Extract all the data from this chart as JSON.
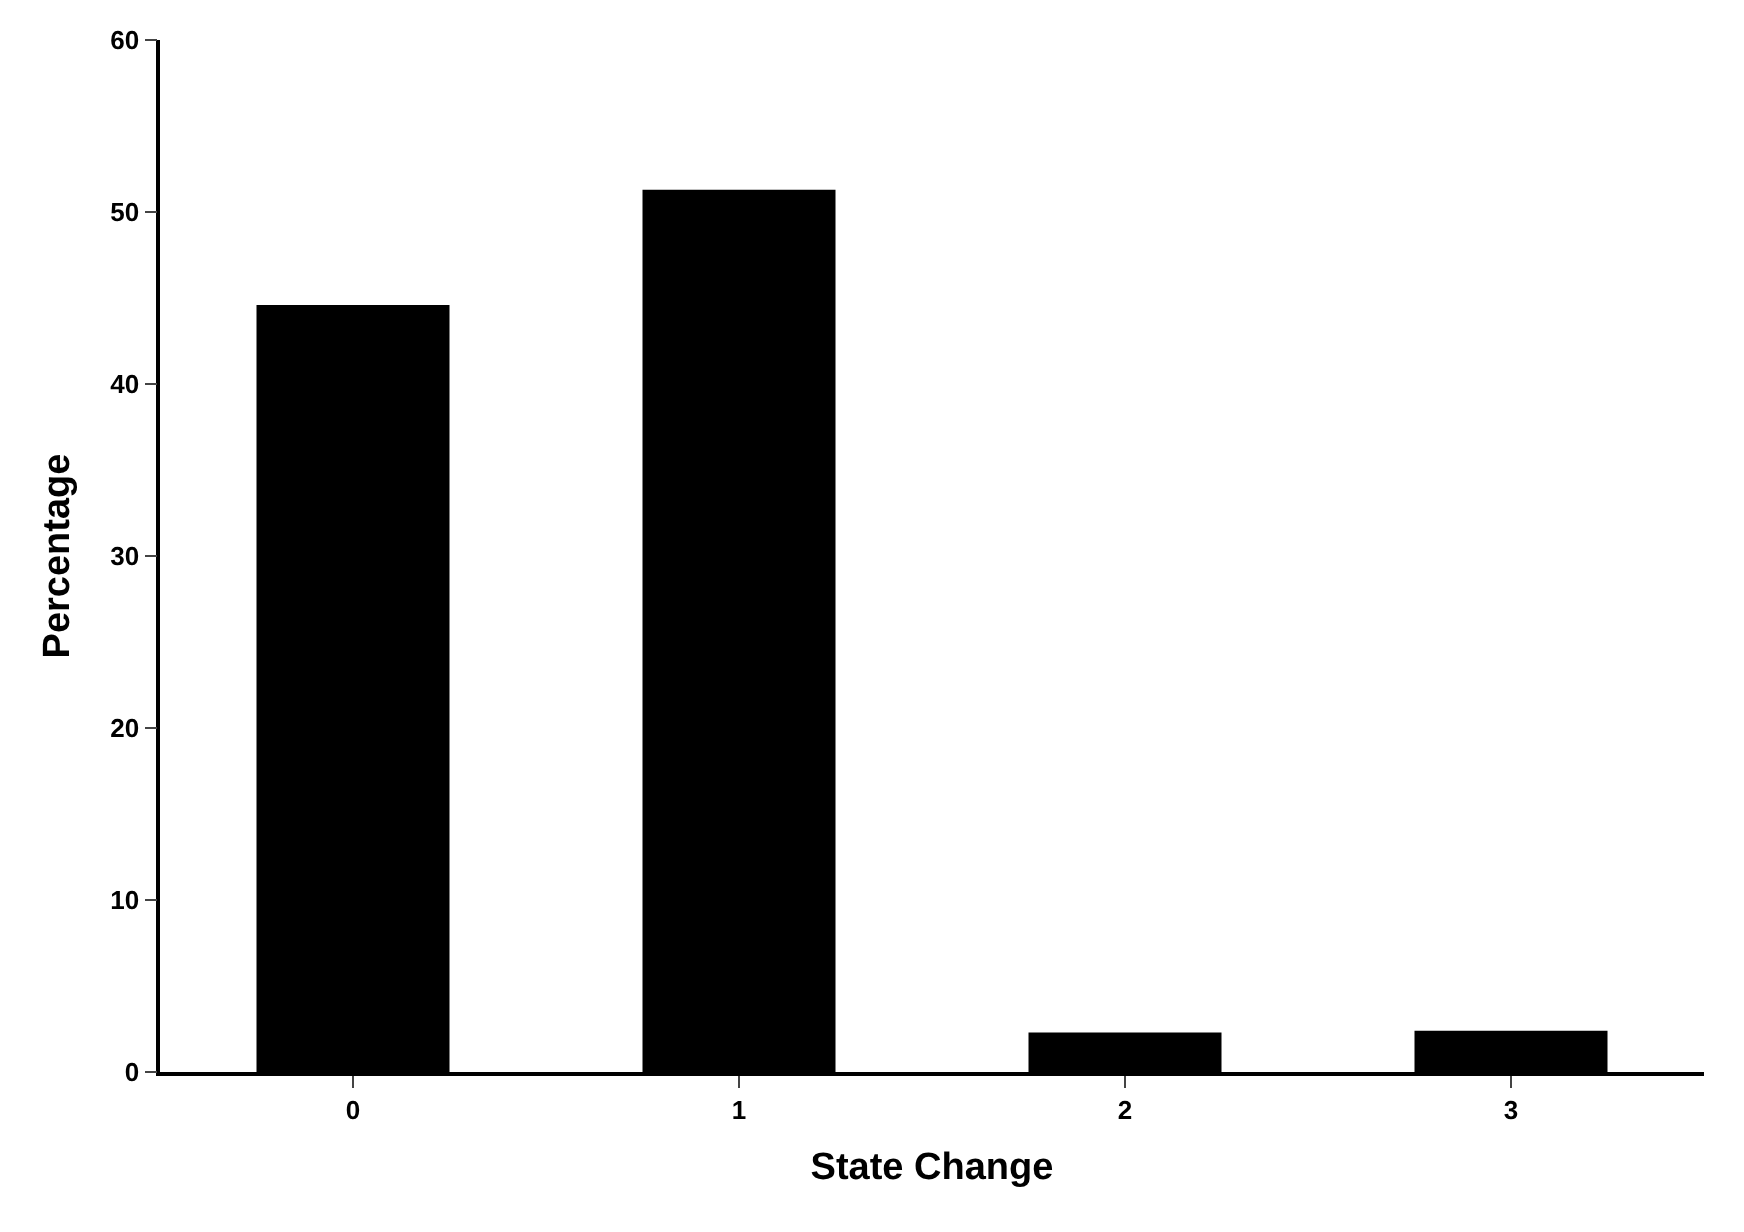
{
  "chart_data": {
    "type": "bar",
    "xlabel": "State Change",
    "ylabel": "Percentage",
    "categories": [
      "0",
      "1",
      "2",
      "3"
    ],
    "values": [
      44.6,
      51.3,
      2.3,
      2.4
    ],
    "color": "#000000",
    "ylim": [
      0,
      60
    ],
    "yticks": [
      0,
      10,
      20,
      30,
      40,
      50,
      60
    ]
  }
}
